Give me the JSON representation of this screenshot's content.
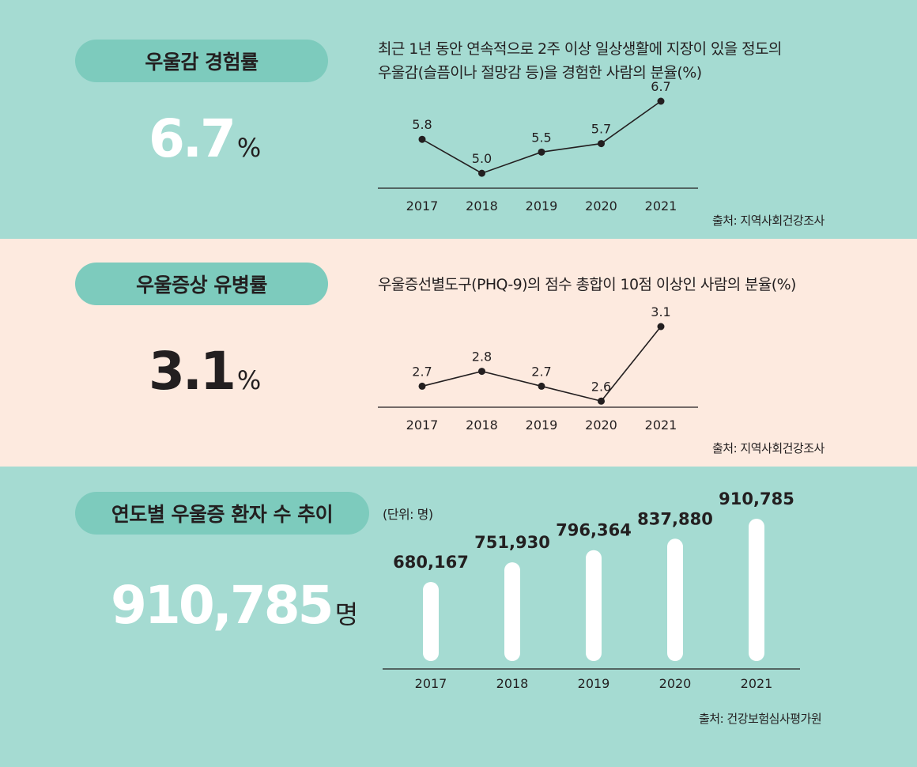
{
  "section1": {
    "title": "우울감 경험률",
    "value": "6.7",
    "unit": "%",
    "description": "최근 1년 동안 연속적으로 2주 이상 일상생활에 지장이 있을 정도의\n우울감(슬픔이나 절망감 등)을 경험한 사람의 분율(%)",
    "source": "출처: 지역사회건강조사"
  },
  "section2": {
    "title": "우울증상 유병률",
    "value": "3.1",
    "unit": "%",
    "description": "우울증선별도구(PHQ-9)의 점수 총합이 10점 이상인 사람의 분율(%)",
    "source": "출처: 지역사회건강조사"
  },
  "section3": {
    "title": "연도별 우울증 환자 수 추이",
    "value": "910,785",
    "unit": "명",
    "unit_note": "(단위: 명)",
    "source": "출처: 건강보험심사평가원"
  },
  "colors": {
    "mint": "#a5dbd2",
    "pill": "#7dcbbd",
    "peach": "#fdeadf",
    "ink": "#231f20",
    "white": "#ffffff"
  },
  "chart_data": [
    {
      "type": "line",
      "categories": [
        "2017",
        "2018",
        "2019",
        "2020",
        "2021"
      ],
      "values": [
        5.8,
        5.0,
        5.5,
        5.7,
        6.7
      ],
      "labels": [
        "5.8",
        "5.0",
        "5.5",
        "5.7",
        "6.7"
      ],
      "ylim": [
        4.2,
        6.7
      ]
    },
    {
      "type": "line",
      "categories": [
        "2017",
        "2018",
        "2019",
        "2020",
        "2021"
      ],
      "values": [
        2.7,
        2.8,
        2.7,
        2.6,
        3.1
      ],
      "labels": [
        "2.7",
        "2.8",
        "2.7",
        "2.6",
        "3.1"
      ],
      "ylim": [
        2.4,
        3.1
      ]
    },
    {
      "type": "bar",
      "categories": [
        "2017",
        "2018",
        "2019",
        "2020",
        "2021"
      ],
      "values": [
        680167,
        751930,
        796364,
        837880,
        910785
      ],
      "labels": [
        "680,167",
        "751,930",
        "796,364",
        "837,880",
        "910,785"
      ],
      "ylim": [
        0,
        910785
      ]
    }
  ]
}
